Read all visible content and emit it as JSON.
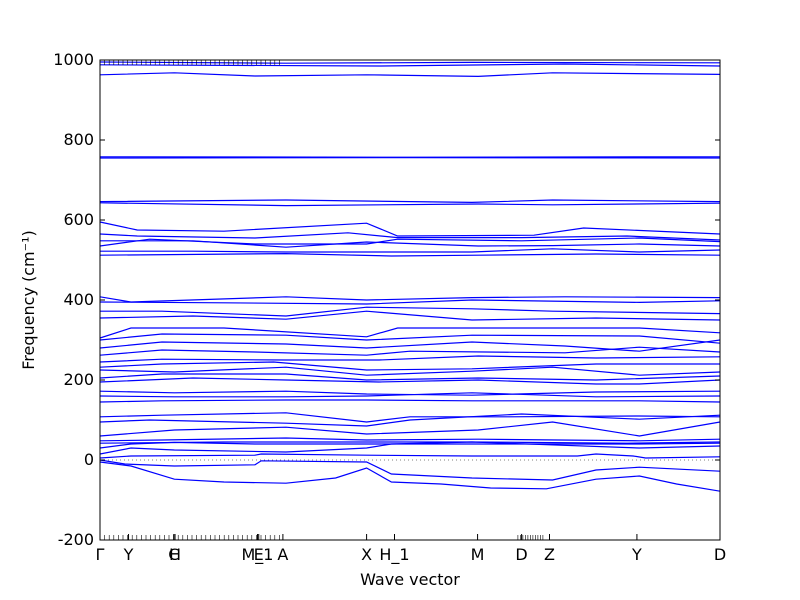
{
  "chart_data": {
    "type": "line",
    "xlabel": "Wave vector",
    "ylabel": "Frequency (cm⁻¹)",
    "ylim": [
      -200,
      1000
    ],
    "yticks": [
      -200,
      0,
      200,
      400,
      600,
      800,
      1000
    ],
    "xlim": [
      0,
      1
    ],
    "grid": false,
    "zero_line": "dotted",
    "line_color": "#0000ff",
    "symmetry_points": [
      {
        "label": "Γ",
        "x": 0.0
      },
      {
        "label": "Y",
        "x": 0.046
      },
      {
        "label": "C",
        "x": 0.119
      },
      {
        "label": "H",
        "x": 0.121
      },
      {
        "label": "M_1",
        "x": 0.254
      },
      {
        "label": "E",
        "x": 0.256
      },
      {
        "label": "A",
        "x": 0.295
      },
      {
        "label": "X",
        "x": 0.43
      },
      {
        "label": "H_1",
        "x": 0.475
      },
      {
        "label": "M",
        "x": 0.609
      },
      {
        "label": "D",
        "x": 0.68
      },
      {
        "label": "Z",
        "x": 0.725
      },
      {
        "label": "Y",
        "x": 0.866
      },
      {
        "label": "D",
        "x": 1.0
      }
    ],
    "series": [
      {
        "values": [
          [
            0,
            995
          ],
          [
            0.3,
            992
          ],
          [
            0.6,
            994
          ],
          [
            1,
            993
          ]
        ]
      },
      {
        "values": [
          [
            0,
            988
          ],
          [
            0.45,
            985
          ],
          [
            0.75,
            990
          ],
          [
            1,
            985
          ]
        ]
      },
      {
        "values": [
          [
            0,
            963
          ],
          [
            0.12,
            968
          ],
          [
            0.25,
            960
          ],
          [
            0.43,
            963
          ],
          [
            0.61,
            959
          ],
          [
            0.73,
            968
          ],
          [
            1,
            964
          ]
        ]
      },
      {
        "values": [
          [
            0,
            758
          ],
          [
            0.5,
            757
          ],
          [
            1,
            758
          ]
        ]
      },
      {
        "values": [
          [
            0,
            755
          ],
          [
            0.5,
            756
          ],
          [
            1,
            755
          ]
        ]
      },
      {
        "values": [
          [
            0,
            646
          ],
          [
            0.3,
            650
          ],
          [
            0.6,
            644
          ],
          [
            0.73,
            650
          ],
          [
            1,
            646
          ]
        ]
      },
      {
        "values": [
          [
            0,
            643
          ],
          [
            0.3,
            636
          ],
          [
            0.61,
            640
          ],
          [
            0.73,
            638
          ],
          [
            1,
            642
          ]
        ]
      },
      {
        "values": [
          [
            0,
            595
          ],
          [
            0.06,
            575
          ],
          [
            0.2,
            572
          ],
          [
            0.43,
            592
          ],
          [
            0.48,
            560
          ],
          [
            0.7,
            562
          ],
          [
            0.78,
            580
          ],
          [
            1,
            565
          ]
        ]
      },
      {
        "values": [
          [
            0,
            565
          ],
          [
            0.06,
            560
          ],
          [
            0.25,
            555
          ],
          [
            0.4,
            568
          ],
          [
            0.48,
            556
          ],
          [
            0.68,
            556
          ],
          [
            0.85,
            560
          ],
          [
            1,
            550
          ]
        ]
      },
      {
        "values": [
          [
            0,
            535
          ],
          [
            0.08,
            552
          ],
          [
            0.25,
            540
          ],
          [
            0.43,
            540
          ],
          [
            0.48,
            552
          ],
          [
            0.68,
            548
          ],
          [
            0.87,
            555
          ],
          [
            1,
            546
          ]
        ]
      },
      {
        "values": [
          [
            0,
            548
          ],
          [
            0.15,
            548
          ],
          [
            0.3,
            532
          ],
          [
            0.43,
            545
          ],
          [
            0.61,
            535
          ],
          [
            0.73,
            536
          ],
          [
            0.87,
            540
          ],
          [
            1,
            535
          ]
        ]
      },
      {
        "values": [
          [
            0,
            522
          ],
          [
            0.15,
            522
          ],
          [
            0.3,
            520
          ],
          [
            0.6,
            520
          ],
          [
            0.73,
            528
          ],
          [
            0.87,
            520
          ],
          [
            1,
            525
          ]
        ]
      },
      {
        "values": [
          [
            0,
            512
          ],
          [
            0.3,
            516
          ],
          [
            0.47,
            510
          ],
          [
            0.61,
            512
          ],
          [
            0.8,
            515
          ],
          [
            1,
            512
          ]
        ]
      },
      {
        "values": [
          [
            0,
            408
          ],
          [
            0.05,
            395
          ],
          [
            0.3,
            408
          ],
          [
            0.43,
            400
          ],
          [
            0.6,
            406
          ],
          [
            0.75,
            408
          ],
          [
            1,
            406
          ]
        ]
      },
      {
        "values": [
          [
            0,
            395
          ],
          [
            0.2,
            393
          ],
          [
            0.43,
            390
          ],
          [
            0.6,
            400
          ],
          [
            0.87,
            394
          ],
          [
            1,
            398
          ]
        ]
      },
      {
        "values": [
          [
            0,
            372
          ],
          [
            0.1,
            372
          ],
          [
            0.3,
            360
          ],
          [
            0.43,
            382
          ],
          [
            0.6,
            378
          ],
          [
            0.73,
            372
          ],
          [
            1,
            366
          ]
        ]
      },
      {
        "values": [
          [
            0,
            355
          ],
          [
            0.15,
            360
          ],
          [
            0.3,
            352
          ],
          [
            0.43,
            372
          ],
          [
            0.6,
            350
          ],
          [
            0.8,
            355
          ],
          [
            1,
            350
          ]
        ]
      },
      {
        "values": [
          [
            0,
            305
          ],
          [
            0.05,
            330
          ],
          [
            0.2,
            330
          ],
          [
            0.43,
            308
          ],
          [
            0.48,
            330
          ],
          [
            0.6,
            330
          ],
          [
            0.87,
            330
          ],
          [
            1,
            318
          ]
        ]
      },
      {
        "values": [
          [
            0,
            300
          ],
          [
            0.1,
            315
          ],
          [
            0.3,
            312
          ],
          [
            0.43,
            300
          ],
          [
            0.6,
            312
          ],
          [
            0.87,
            310
          ],
          [
            1,
            292
          ]
        ]
      },
      {
        "values": [
          [
            0,
            280
          ],
          [
            0.1,
            295
          ],
          [
            0.3,
            290
          ],
          [
            0.43,
            280
          ],
          [
            0.6,
            295
          ],
          [
            0.75,
            285
          ],
          [
            0.87,
            272
          ],
          [
            1,
            300
          ]
        ]
      },
      {
        "values": [
          [
            0,
            262
          ],
          [
            0.1,
            275
          ],
          [
            0.25,
            270
          ],
          [
            0.43,
            262
          ],
          [
            0.5,
            272
          ],
          [
            0.75,
            268
          ],
          [
            0.87,
            282
          ],
          [
            1,
            270
          ]
        ]
      },
      {
        "values": [
          [
            0,
            245
          ],
          [
            0.1,
            252
          ],
          [
            0.3,
            250
          ],
          [
            0.45,
            250
          ],
          [
            0.61,
            260
          ],
          [
            0.8,
            255
          ],
          [
            1,
            258
          ]
        ]
      },
      {
        "values": [
          [
            0,
            232
          ],
          [
            0.1,
            240
          ],
          [
            0.28,
            245
          ],
          [
            0.43,
            225
          ],
          [
            0.6,
            228
          ],
          [
            0.8,
            240
          ],
          [
            1,
            240
          ]
        ]
      },
      {
        "values": [
          [
            0,
            225
          ],
          [
            0.12,
            220
          ],
          [
            0.3,
            232
          ],
          [
            0.43,
            212
          ],
          [
            0.6,
            222
          ],
          [
            0.73,
            232
          ],
          [
            0.87,
            212
          ],
          [
            1,
            220
          ]
        ]
      },
      {
        "values": [
          [
            0,
            205
          ],
          [
            0.1,
            215
          ],
          [
            0.3,
            215
          ],
          [
            0.43,
            200
          ],
          [
            0.61,
            205
          ],
          [
            0.8,
            200
          ],
          [
            1,
            210
          ]
        ]
      },
      {
        "values": [
          [
            0,
            195
          ],
          [
            0.15,
            205
          ],
          [
            0.3,
            200
          ],
          [
            0.45,
            195
          ],
          [
            0.61,
            200
          ],
          [
            0.8,
            190
          ],
          [
            0.87,
            190
          ],
          [
            1,
            200
          ]
        ]
      },
      {
        "values": [
          [
            0,
            172
          ],
          [
            0.12,
            168
          ],
          [
            0.3,
            172
          ],
          [
            0.43,
            165
          ],
          [
            0.6,
            162
          ],
          [
            0.8,
            170
          ],
          [
            1,
            172
          ]
        ]
      },
      {
        "values": [
          [
            0,
            160
          ],
          [
            0.12,
            158
          ],
          [
            0.3,
            158
          ],
          [
            0.43,
            160
          ],
          [
            0.6,
            168
          ],
          [
            0.8,
            158
          ],
          [
            1,
            160
          ]
        ]
      },
      {
        "values": [
          [
            0,
            145
          ],
          [
            0.1,
            148
          ],
          [
            0.3,
            150
          ],
          [
            0.43,
            150
          ],
          [
            0.6,
            148
          ],
          [
            0.87,
            148
          ],
          [
            1,
            145
          ]
        ]
      },
      {
        "values": [
          [
            0,
            108
          ],
          [
            0.1,
            112
          ],
          [
            0.3,
            118
          ],
          [
            0.43,
            95
          ],
          [
            0.5,
            108
          ],
          [
            0.66,
            108
          ],
          [
            0.87,
            110
          ],
          [
            1,
            108
          ]
        ]
      },
      {
        "values": [
          [
            0,
            95
          ],
          [
            0.08,
            100
          ],
          [
            0.3,
            92
          ],
          [
            0.43,
            85
          ],
          [
            0.5,
            100
          ],
          [
            0.68,
            115
          ],
          [
            0.87,
            102
          ],
          [
            1,
            112
          ]
        ]
      },
      {
        "values": [
          [
            0,
            60
          ],
          [
            0.12,
            75
          ],
          [
            0.3,
            82
          ],
          [
            0.43,
            65
          ],
          [
            0.61,
            75
          ],
          [
            0.73,
            95
          ],
          [
            0.87,
            60
          ],
          [
            1,
            95
          ]
        ]
      },
      {
        "values": [
          [
            0,
            48
          ],
          [
            0.1,
            50
          ],
          [
            0.3,
            55
          ],
          [
            0.43,
            50
          ],
          [
            0.61,
            52
          ],
          [
            0.87,
            48
          ],
          [
            1,
            52
          ]
        ]
      },
      {
        "values": [
          [
            0,
            42
          ],
          [
            0.2,
            45
          ],
          [
            0.43,
            45
          ],
          [
            0.6,
            45
          ],
          [
            0.85,
            42
          ],
          [
            1,
            45
          ]
        ]
      },
      {
        "values": [
          [
            0,
            30
          ],
          [
            0.05,
            40
          ],
          [
            0.12,
            44
          ],
          [
            0.25,
            40
          ],
          [
            0.43,
            40
          ],
          [
            0.6,
            40
          ],
          [
            0.87,
            40
          ],
          [
            1,
            42
          ]
        ]
      },
      {
        "values": [
          [
            0,
            15
          ],
          [
            0.05,
            30
          ],
          [
            0.12,
            25
          ],
          [
            0.3,
            20
          ],
          [
            0.43,
            30
          ],
          [
            0.47,
            40
          ],
          [
            0.6,
            45
          ],
          [
            0.87,
            30
          ],
          [
            1,
            35
          ]
        ]
      },
      {
        "values": [
          [
            0,
            5
          ],
          [
            0.05,
            10
          ],
          [
            0.25,
            12
          ],
          [
            0.26,
            15
          ],
          [
            0.43,
            12
          ],
          [
            0.6,
            10
          ],
          [
            0.77,
            10
          ],
          [
            0.8,
            15
          ],
          [
            0.86,
            10
          ],
          [
            0.88,
            5
          ],
          [
            1,
            8
          ]
        ]
      },
      {
        "values": [
          [
            0,
            0
          ],
          [
            0.04,
            -10
          ],
          [
            0.12,
            -15
          ],
          [
            0.25,
            -12
          ],
          [
            0.26,
            -2
          ],
          [
            0.43,
            -5
          ],
          [
            0.47,
            -35
          ],
          [
            0.6,
            -45
          ],
          [
            0.73,
            -50
          ],
          [
            0.8,
            -25
          ],
          [
            0.87,
            -18
          ],
          [
            1,
            -28
          ]
        ]
      },
      {
        "values": [
          [
            0,
            -5
          ],
          [
            0.05,
            -15
          ],
          [
            0.12,
            -48
          ],
          [
            0.2,
            -55
          ],
          [
            0.3,
            -58
          ],
          [
            0.38,
            -45
          ],
          [
            0.43,
            -20
          ],
          [
            0.47,
            -55
          ],
          [
            0.55,
            -60
          ],
          [
            0.63,
            -70
          ],
          [
            0.72,
            -72
          ],
          [
            0.8,
            -48
          ],
          [
            0.87,
            -40
          ],
          [
            0.93,
            -60
          ],
          [
            1,
            -78
          ]
        ]
      }
    ]
  }
}
